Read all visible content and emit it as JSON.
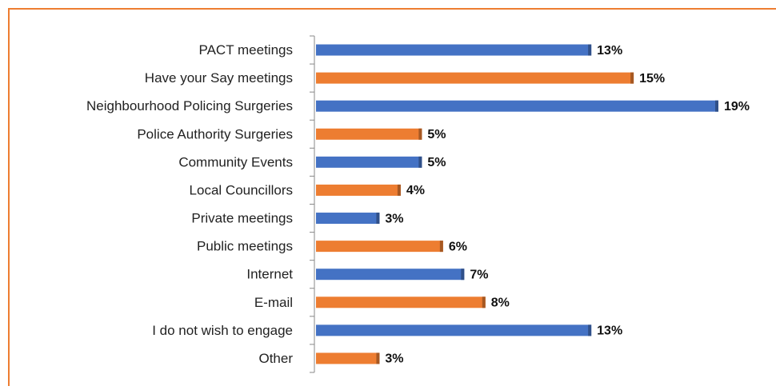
{
  "chart_data": {
    "type": "bar",
    "orientation": "horizontal",
    "categories": [
      "PACT meetings",
      "Have your Say meetings",
      "Neighbourhood Policing Surgeries",
      "Police Authority Surgeries",
      "Community Events",
      "Local Councillors",
      "Private meetings",
      "Public meetings",
      "Internet",
      "E-mail",
      "I do not wish to engage",
      "Other"
    ],
    "values": [
      13,
      15,
      19,
      5,
      5,
      4,
      3,
      6,
      7,
      8,
      13,
      3
    ],
    "value_labels": [
      "13%",
      "15%",
      "19%",
      "5%",
      "5%",
      "4%",
      "3%",
      "6%",
      "7%",
      "8%",
      "13%",
      "3%"
    ],
    "colors": [
      "#4472c4",
      "#ed7d31",
      "#4472c4",
      "#ed7d31",
      "#4472c4",
      "#ed7d31",
      "#4472c4",
      "#ed7d31",
      "#4472c4",
      "#ed7d31",
      "#4472c4",
      "#ed7d31"
    ]
  }
}
